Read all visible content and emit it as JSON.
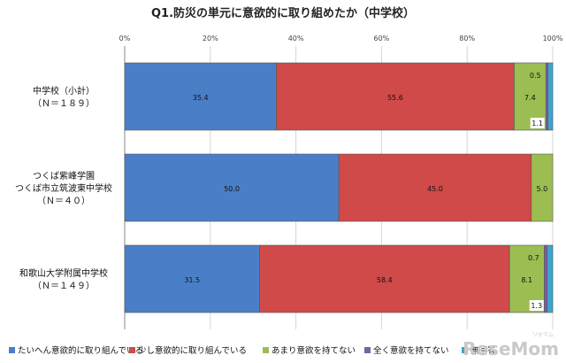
{
  "chart_data": {
    "type": "bar",
    "orientation": "horizontal",
    "stacked": true,
    "title": "Q1.防災の単元に意欲的に取り組めたか（中学校）",
    "categories": [
      [
        "中学校（小計）",
        "（Ｎ＝１８９）"
      ],
      [
        "つくば紫峰学園",
        "つくば市立筑波東中学校",
        "（Ｎ＝４０）"
      ],
      [
        "和歌山大学附属中学校",
        "（Ｎ＝１４９）"
      ]
    ],
    "xlim": [
      0,
      100
    ],
    "xticks": [
      "0%",
      "20%",
      "40%",
      "60%",
      "80%",
      "100%"
    ],
    "grid": true,
    "legend_position": "bottom",
    "series": [
      {
        "name": "たいへん意欲的に取り組んでいる",
        "color": "#4a7fc8",
        "values": [
          35.4,
          50.0,
          31.5
        ],
        "labels": [
          "35.4",
          "50.0",
          "31.5"
        ]
      },
      {
        "name": "少し意欲的に取り組んでいる",
        "color": "#cf4a48",
        "values": [
          55.6,
          45.0,
          58.4
        ],
        "labels": [
          "55.6",
          "45.0",
          "58.4"
        ]
      },
      {
        "name": "あまり意欲を持てない",
        "color": "#9bbd52",
        "values": [
          7.4,
          5.0,
          8.1
        ],
        "labels": [
          "7.4",
          "5.0",
          "8.1"
        ]
      },
      {
        "name": "全く意欲を持てない",
        "color": "#7e5fa3",
        "values": [
          0.5,
          0,
          0.7
        ],
        "labels": [
          "0.5",
          "",
          "0.7"
        ]
      },
      {
        "name": "無回答",
        "color": "#3aa6cc",
        "values": [
          1.1,
          0,
          1.3
        ],
        "labels": [
          "1.1",
          "",
          "1.3"
        ]
      }
    ]
  },
  "watermark": {
    "text": "ReseMom",
    "sub": "リセマム"
  }
}
